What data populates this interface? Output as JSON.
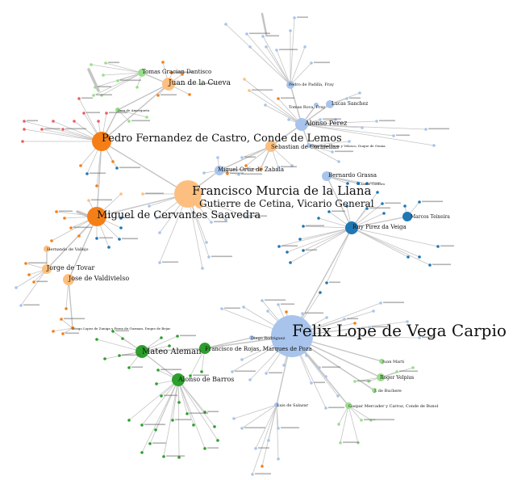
{
  "colors": {
    "orange": "#f57f17",
    "peach": "#fdbf7f",
    "lightblue": "#a8c4ec",
    "darkblue": "#1f77b4",
    "darkgreen": "#2ca02c",
    "lightgreen": "#98df8a",
    "red": "#e86060",
    "edge": "#c4c4c4"
  },
  "labels": {
    "lope": "Felix Lope de Vega Carpio",
    "murcia": "Francisco Murcia de la Llana",
    "lemos": "Pedro Fernandez de Castro, Conde de Lemos",
    "cervantes": "Miguel de Cervantes Saavedra",
    "cetina": "Gutierre de Cetina, Vicario General",
    "mateo": "Mateo Aleman",
    "rojas": "Francisco de Rojas, Marques de Poza",
    "barros": "Alonso de Barros",
    "tovar": "Jorge de Tovar",
    "valdivielso": "Jose de Valdivielso",
    "cueva": "Juan de la Cueva",
    "dantisco": "Tomas Gracian Dantisco",
    "perez": "Alonso Perez",
    "sanchez": "Lucas Sanchez",
    "padilla": "Pedro de Padilla, Fray",
    "tomasroca": "Tomas Roca, Fray",
    "sebastian": "Sebastian de Cormellas",
    "zabala": "Miguel Ortiz de Zabala",
    "grassa": "Bernardo Grassa",
    "ruy": "Ruy Pirez da Veiga",
    "teixeira": "Marcos Teixeira",
    "salazar": "Luis de Salazar",
    "diego": "Diego Rodriguez",
    "marti": "Juan Marti",
    "velpius": "Roger Velpius",
    "mercader": "Gaspar Mercader y Carroz, Conde de Bunol",
    "bucher": "J. de Buchere",
    "vallejo": "Hernando de Vallejo",
    "amezqueta": "Juan de Amezqueta",
    "giron": "Pedro Tellez Giron y Velasco, Duque de Osuna",
    "lopez": "Diego Lopez de Zuniga y Perez de Guzman, Duque de Bejar",
    "cordero": "Claude Cordero"
  }
}
